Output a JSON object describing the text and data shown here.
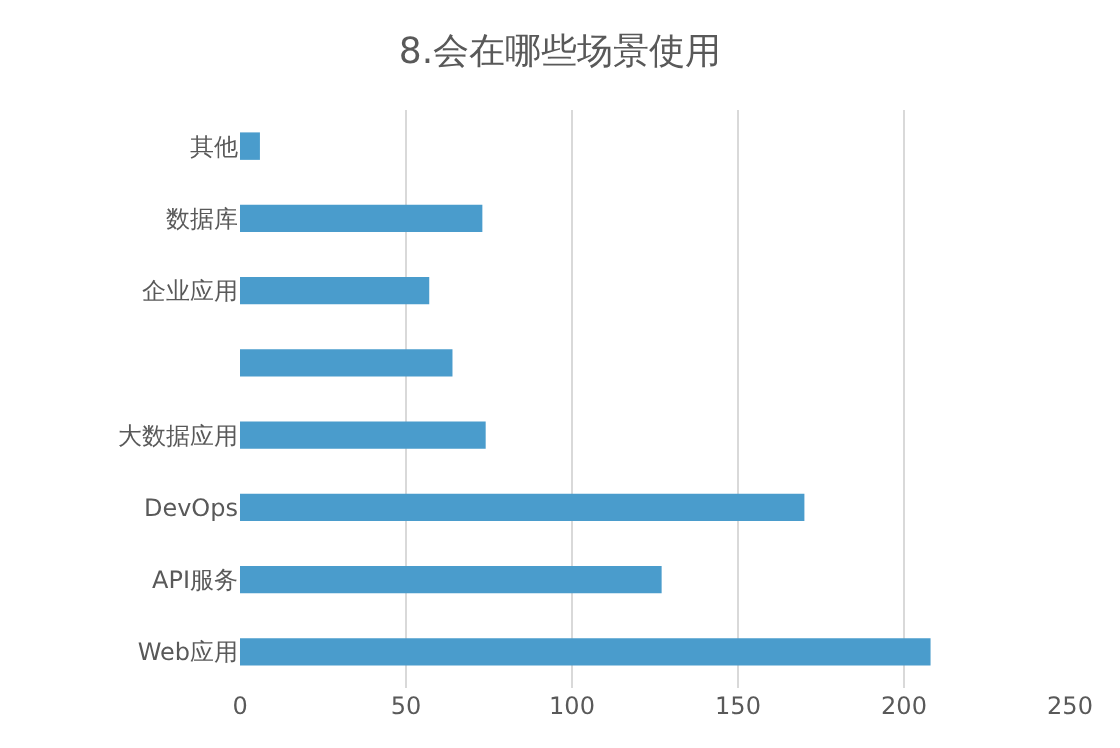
{
  "chart_data": {
    "type": "bar",
    "orientation": "horizontal",
    "title": "8.会在哪些场景使用",
    "categories": [
      "其他",
      "数据库",
      "企业应用",
      null,
      "大数据应用",
      "DevOps",
      "API服务",
      "Web应用"
    ],
    "values": [
      6,
      73,
      57,
      64,
      74,
      170,
      127,
      208
    ],
    "color": "#4a9ccc",
    "xlim": [
      0,
      250
    ],
    "xticks": [
      0,
      50,
      100,
      150,
      200,
      250
    ],
    "grid": "x"
  }
}
